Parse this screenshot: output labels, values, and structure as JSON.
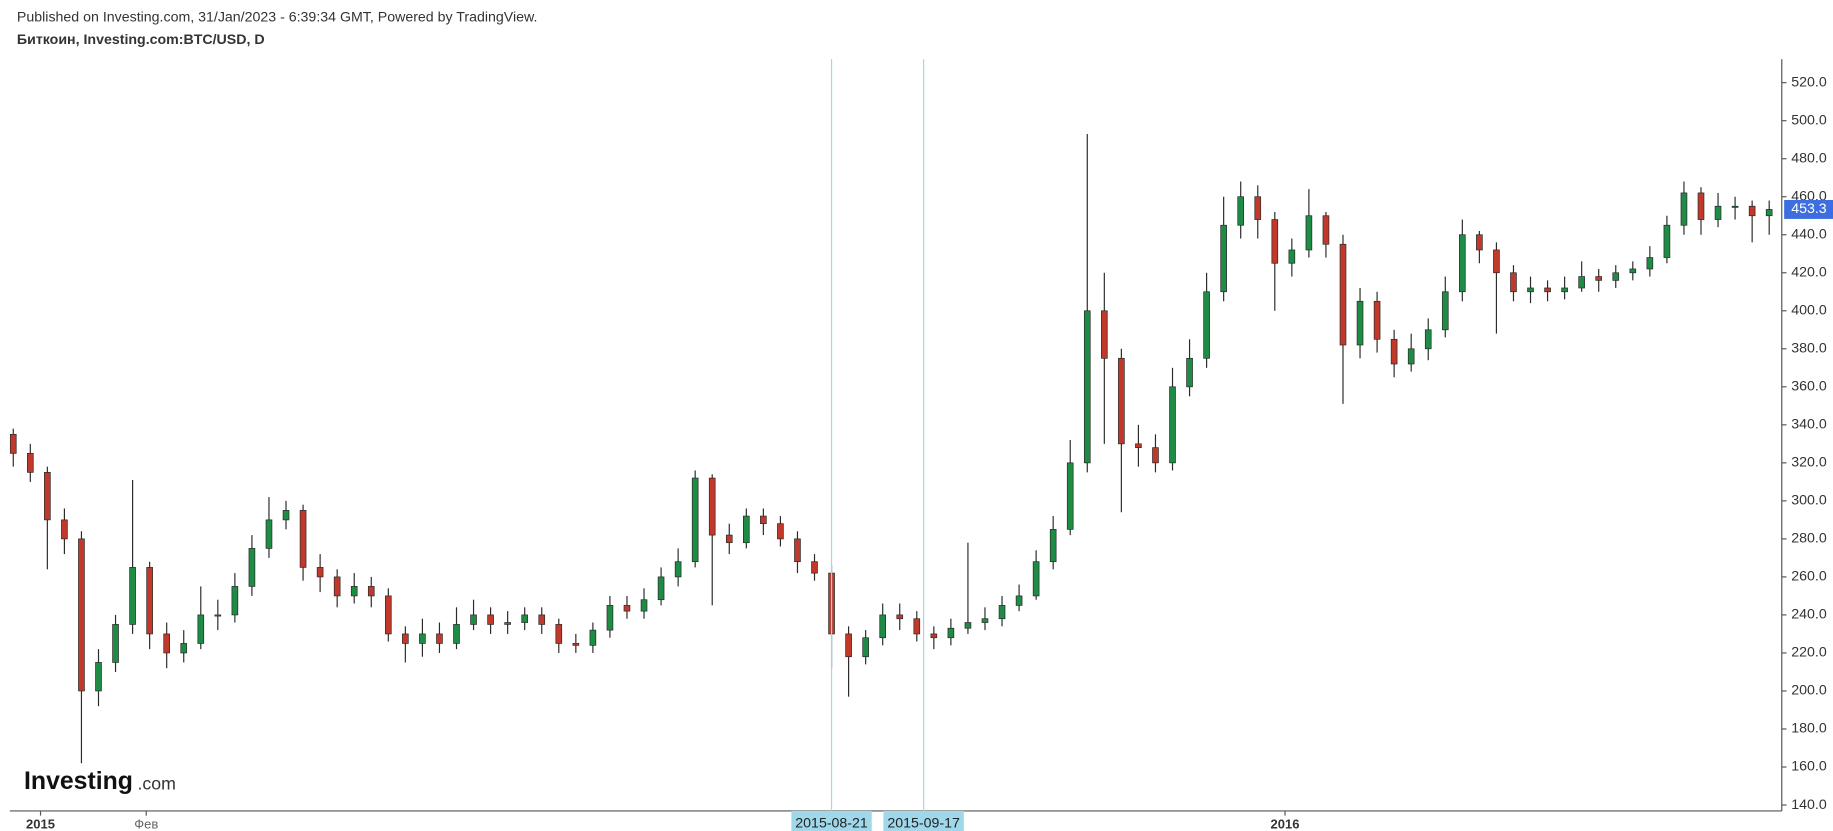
{
  "chart_data": {
    "type": "candlestick",
    "published": "Published on Investing.com, 31/Jan/2023 - 6:39:34 GMT, Powered by TradingView.",
    "title": "Биткоин, Investing.com:BTC/USD, D",
    "logo": [
      "Investing",
      ".com"
    ],
    "up_color": "#1e8c45",
    "down_color": "#c0392b",
    "wick_color": "#2b2b2b",
    "x": [
      "2014-12-24",
      "2014-12-29",
      "2015-01-03",
      "2015-01-08",
      "2015-01-13",
      "2015-01-18",
      "2015-01-23",
      "2015-01-28",
      "2015-02-02",
      "2015-02-07",
      "2015-02-12",
      "2015-02-17",
      "2015-02-22",
      "2015-02-27",
      "2015-03-04",
      "2015-03-09",
      "2015-03-14",
      "2015-03-19",
      "2015-03-24",
      "2015-03-29",
      "2015-04-03",
      "2015-04-08",
      "2015-04-13",
      "2015-04-18",
      "2015-04-23",
      "2015-04-28",
      "2015-05-03",
      "2015-05-08",
      "2015-05-13",
      "2015-05-18",
      "2015-05-23",
      "2015-05-28",
      "2015-06-02",
      "2015-06-07",
      "2015-06-12",
      "2015-06-17",
      "2015-06-22",
      "2015-06-27",
      "2015-07-02",
      "2015-07-07",
      "2015-07-12",
      "2015-07-17",
      "2015-07-22",
      "2015-07-27",
      "2015-08-01",
      "2015-08-06",
      "2015-08-11",
      "2015-08-16",
      "2015-08-21",
      "2015-08-26",
      "2015-08-31",
      "2015-09-05",
      "2015-09-10",
      "2015-09-15",
      "2015-09-20",
      "2015-09-25",
      "2015-09-30",
      "2015-10-05",
      "2015-10-10",
      "2015-10-15",
      "2015-10-20",
      "2015-10-25",
      "2015-10-30",
      "2015-11-04",
      "2015-11-09",
      "2015-11-14",
      "2015-11-19",
      "2015-11-24",
      "2015-11-29",
      "2015-12-04",
      "2015-12-09",
      "2015-12-14",
      "2015-12-19",
      "2015-12-24",
      "2015-12-29",
      "2016-01-03",
      "2016-01-08",
      "2016-01-13",
      "2016-01-18",
      "2016-01-23",
      "2016-01-28",
      "2016-02-02",
      "2016-02-07",
      "2016-02-12",
      "2016-02-17",
      "2016-02-22",
      "2016-02-27",
      "2016-03-03",
      "2016-03-08",
      "2016-03-13",
      "2016-03-18",
      "2016-03-23",
      "2016-03-28",
      "2016-04-02",
      "2016-04-07",
      "2016-04-12",
      "2016-04-17",
      "2016-04-22",
      "2016-04-27",
      "2016-05-02",
      "2016-05-07",
      "2016-05-12",
      "2016-05-17",
      "2016-05-22"
    ],
    "open": [
      335,
      325,
      315,
      290,
      280,
      200,
      215,
      235,
      265,
      230,
      220,
      225,
      240,
      240,
      255,
      275,
      290,
      295,
      265,
      260,
      250,
      255,
      250,
      230,
      225,
      230,
      225,
      235,
      240,
      235,
      236,
      240,
      235,
      225,
      224,
      232,
      245,
      242,
      248,
      260,
      268,
      312,
      282,
      278,
      292,
      288,
      280,
      268,
      262,
      230,
      218,
      228,
      240,
      238,
      230,
      228,
      233,
      236,
      238,
      245,
      250,
      268,
      285,
      320,
      400,
      375,
      330,
      328,
      320,
      360,
      375,
      410,
      445,
      460,
      448,
      425,
      432,
      450,
      435,
      382,
      405,
      385,
      372,
      380,
      390,
      410,
      440,
      432,
      420,
      410,
      412,
      410,
      412,
      418,
      416,
      420,
      422,
      428,
      445,
      462,
      448,
      455,
      455,
      450
    ],
    "high": [
      338,
      330,
      318,
      296,
      284,
      222,
      240,
      311,
      268,
      236,
      232,
      255,
      248,
      262,
      282,
      302,
      300,
      298,
      272,
      264,
      262,
      260,
      254,
      234,
      238,
      236,
      244,
      248,
      244,
      242,
      244,
      244,
      238,
      230,
      236,
      250,
      250,
      254,
      265,
      275,
      316,
      314,
      288,
      296,
      296,
      292,
      284,
      272,
      266,
      234,
      232,
      246,
      246,
      242,
      234,
      238,
      278,
      244,
      250,
      256,
      274,
      292,
      332,
      493,
      420,
      380,
      340,
      335,
      370,
      385,
      420,
      460,
      468,
      466,
      452,
      438,
      464,
      452,
      440,
      412,
      410,
      390,
      388,
      396,
      418,
      448,
      442,
      436,
      424,
      418,
      416,
      418,
      426,
      422,
      424,
      426,
      434,
      450,
      468,
      465,
      462,
      460,
      458,
      458
    ],
    "low": [
      318,
      310,
      264,
      272,
      162,
      192,
      210,
      230,
      222,
      212,
      215,
      222,
      232,
      236,
      250,
      270,
      285,
      258,
      252,
      244,
      246,
      244,
      226,
      215,
      218,
      220,
      222,
      232,
      230,
      230,
      232,
      230,
      220,
      220,
      220,
      228,
      238,
      238,
      245,
      255,
      265,
      245,
      272,
      275,
      282,
      276,
      262,
      258,
      212,
      197,
      214,
      224,
      232,
      226,
      222,
      224,
      230,
      232,
      234,
      242,
      248,
      264,
      282,
      315,
      330,
      294,
      318,
      315,
      316,
      355,
      370,
      405,
      438,
      438,
      400,
      418,
      428,
      428,
      351,
      375,
      378,
      365,
      368,
      374,
      386,
      405,
      425,
      388,
      405,
      404,
      405,
      406,
      410,
      410,
      412,
      416,
      418,
      425,
      440,
      440,
      444,
      448,
      436,
      440
    ],
    "close": [
      325,
      315,
      290,
      280,
      200,
      215,
      235,
      265,
      230,
      220,
      225,
      240,
      240,
      255,
      275,
      290,
      295,
      265,
      260,
      250,
      255,
      250,
      230,
      225,
      230,
      225,
      235,
      240,
      235,
      236,
      240,
      235,
      225,
      224,
      232,
      245,
      242,
      248,
      260,
      268,
      312,
      282,
      278,
      292,
      288,
      280,
      268,
      262,
      230,
      218,
      228,
      240,
      238,
      230,
      228,
      233,
      236,
      238,
      245,
      250,
      268,
      285,
      320,
      400,
      375,
      330,
      328,
      320,
      360,
      375,
      410,
      445,
      460,
      448,
      425,
      432,
      450,
      435,
      382,
      405,
      385,
      372,
      380,
      390,
      410,
      440,
      432,
      420,
      410,
      412,
      410,
      412,
      418,
      416,
      420,
      422,
      428,
      445,
      462,
      448,
      455,
      455,
      450,
      453.3
    ],
    "xlim": [
      "2014-12-23",
      "2016-05-25"
    ],
    "xticks": [
      {
        "value": "2015-01-01",
        "label": "2015"
      },
      {
        "value": "2015-02-01",
        "label": "Фев"
      },
      {
        "value": "2016-01-01",
        "label": "2016"
      }
    ],
    "ylim": [
      136.9,
      532.4
    ],
    "yticks": [
      {
        "value": 140,
        "label": "140.0"
      },
      {
        "value": 160,
        "label": "160.0"
      },
      {
        "value": 180,
        "label": "180.0"
      },
      {
        "value": 200,
        "label": "200.0"
      },
      {
        "value": 220,
        "label": "220.0"
      },
      {
        "value": 240,
        "label": "240.0"
      },
      {
        "value": 260,
        "label": "260.0"
      },
      {
        "value": 280,
        "label": "280.0"
      },
      {
        "value": 300,
        "label": "300.0"
      },
      {
        "value": 320,
        "label": "320.0"
      },
      {
        "value": 340,
        "label": "340.0"
      },
      {
        "value": 360,
        "label": "360.0"
      },
      {
        "value": 380,
        "label": "380.0"
      },
      {
        "value": 400,
        "label": "400.0"
      },
      {
        "value": 420,
        "label": "420.0"
      },
      {
        "value": 440,
        "label": "440.0"
      },
      {
        "value": 460,
        "label": "460.0"
      },
      {
        "value": 480,
        "label": "480.0"
      },
      {
        "value": 500,
        "label": "500.0"
      },
      {
        "value": 520,
        "label": "520.0"
      }
    ],
    "vlines": [
      "2015-08-21",
      "2015-09-17"
    ],
    "vline_color": "#9fd8ea",
    "price_label_color": "#3d6ee0"
  }
}
